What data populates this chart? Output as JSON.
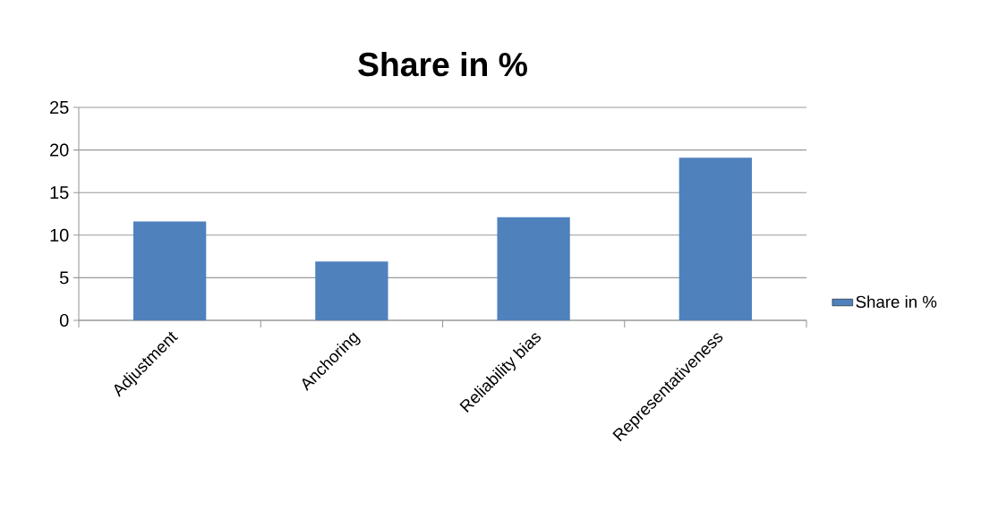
{
  "chart_data": {
    "type": "bar",
    "title": "Share in %",
    "categories": [
      "Adjustment",
      "Anchoring",
      "Reliability bias",
      "Representativeness"
    ],
    "series": [
      {
        "name": "Share in %",
        "color": "#4f81bd",
        "values": [
          11.6,
          6.9,
          12.1,
          19.1
        ]
      }
    ],
    "ylim": [
      0,
      25
    ],
    "yticks": [
      0,
      5,
      10,
      15,
      20,
      25
    ],
    "grid": "y",
    "legend": "right"
  }
}
